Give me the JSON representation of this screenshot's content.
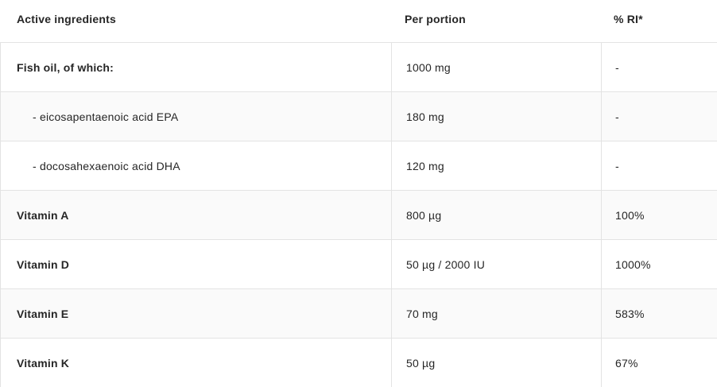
{
  "table": {
    "columns": {
      "ingredients": "Active ingredients",
      "per_portion": "Per portion",
      "ri": "% RI*"
    },
    "rows": [
      {
        "ingredient": "Fish oil, of which:",
        "per_portion": "1000 mg",
        "ri": "-"
      },
      {
        "ingredient": "- eicosapentaenoic acid EPA",
        "per_portion": "180 mg",
        "ri": "-"
      },
      {
        "ingredient": "- docosahexaenoic acid DHA",
        "per_portion": "120 mg",
        "ri": "-"
      },
      {
        "ingredient": "Vitamin A",
        "per_portion": "800 µg",
        "ri": "100%"
      },
      {
        "ingredient": "Vitamin D",
        "per_portion": "50 µg / 2000 IU",
        "ri": "1000%"
      },
      {
        "ingredient": "Vitamin E",
        "per_portion": "70 mg",
        "ri": "583%"
      },
      {
        "ingredient": "Vitamin K",
        "per_portion": "50 µg",
        "ri": "67%"
      }
    ],
    "colors": {
      "text": "#262626",
      "border": "#e3e3e3",
      "row_bg": "#ffffff",
      "row_alt_bg": "#fafafa"
    }
  }
}
